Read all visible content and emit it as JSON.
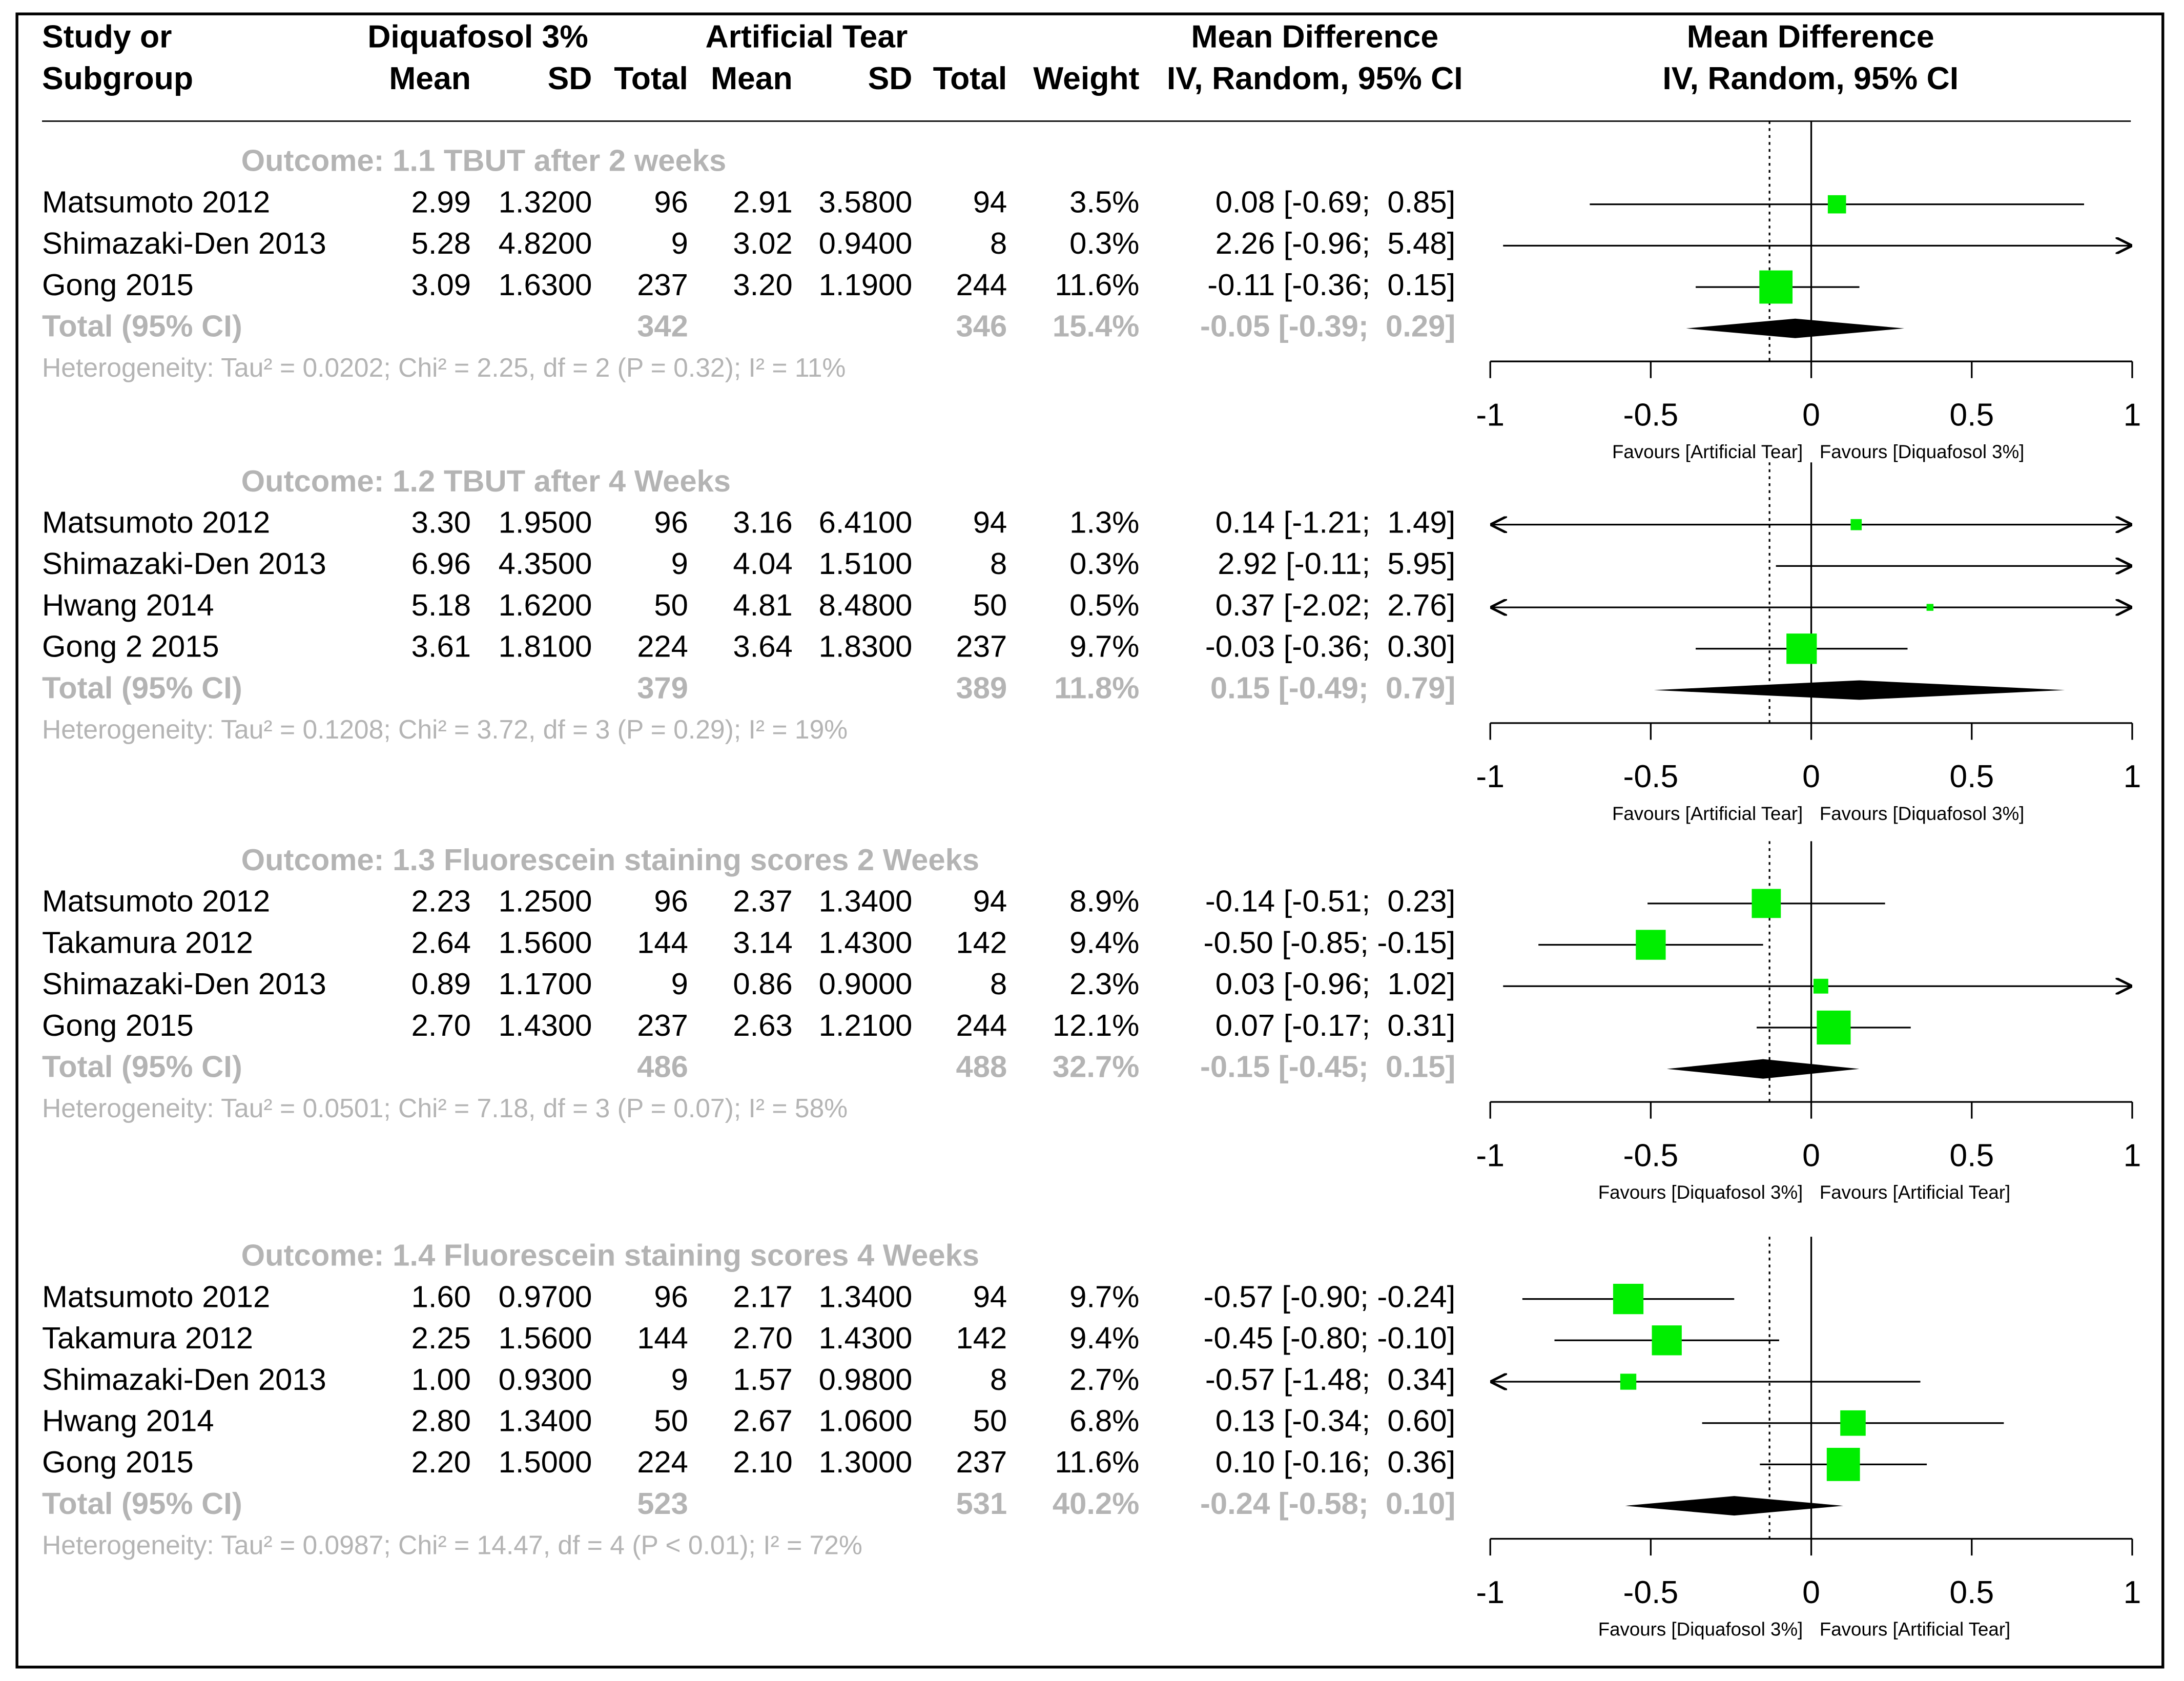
{
  "chart_data": {
    "type": "forest",
    "header": {
      "study": [
        "Study or",
        "Subgroup"
      ],
      "group1": "Diquafosol 3%",
      "group2": "Artificial Tear",
      "md": "Mean Difference",
      "plot": "Mean Difference",
      "cols": [
        "Mean",
        "SD",
        "Total",
        "Mean",
        "SD",
        "Total",
        "Weight",
        "IV, Random, 95% CI"
      ],
      "plot_sub": "IV, Random, 95% CI"
    },
    "xlim": [
      -1,
      1
    ],
    "xticks": [
      -1,
      -0.5,
      0,
      0.5,
      1
    ],
    "dotted_line": -0.13,
    "box_color": "#00ee00",
    "subgroups": [
      {
        "title": "Outcome: 1.1 TBUT after 2 weeks",
        "studies": [
          {
            "name": "Matsumoto 2012",
            "cells": [
              "2.99",
              "1.3200",
              "96",
              "2.91",
              "3.5800",
              "94"
            ],
            "weight": 3.5,
            "weight_label": "3.5%",
            "md": 0.08,
            "lo": -0.69,
            "hi": 0.85,
            "ci_label": "0.08 [-0.69;  0.85]"
          },
          {
            "name": "Shimazaki-Den 2013",
            "cells": [
              "5.28",
              "4.8200",
              "9",
              "3.02",
              "0.9400",
              "8"
            ],
            "weight": 0.3,
            "weight_label": "0.3%",
            "md": 2.26,
            "lo": -0.96,
            "hi": 5.48,
            "ci_label": "2.26 [-0.96;  5.48]"
          },
          {
            "name": "Gong 2015",
            "cells": [
              "3.09",
              "1.6300",
              "237",
              "3.20",
              "1.1900",
              "244"
            ],
            "weight": 11.6,
            "weight_label": "11.6%",
            "md": -0.11,
            "lo": -0.36,
            "hi": 0.15,
            "ci_label": "-0.11 [-0.36;  0.15]"
          }
        ],
        "total": {
          "label": "Total (95% CI)",
          "n1": "342",
          "n2": "346",
          "weight_label": "15.4%",
          "md": -0.05,
          "lo": -0.39,
          "hi": 0.29,
          "ci_label": "-0.05 [-0.39;  0.29]"
        },
        "heterogeneity": "Heterogeneity: Tau² = 0.0202; Chi² = 2.25, df = 2 (P = 0.32); I² = 11%",
        "favours": [
          "Favours [Artificial Tear]",
          "Favours [Diquafosol 3%]"
        ]
      },
      {
        "title": "Outcome: 1.2 TBUT after 4 Weeks",
        "studies": [
          {
            "name": "Matsumoto 2012",
            "cells": [
              "3.30",
              "1.9500",
              "96",
              "3.16",
              "6.4100",
              "94"
            ],
            "weight": 1.3,
            "weight_label": "1.3%",
            "md": 0.14,
            "lo": -1.21,
            "hi": 1.49,
            "ci_label": "0.14 [-1.21;  1.49]"
          },
          {
            "name": "Shimazaki-Den 2013",
            "cells": [
              "6.96",
              "4.3500",
              "9",
              "4.04",
              "1.5100",
              "8"
            ],
            "weight": 0.3,
            "weight_label": "0.3%",
            "md": 2.92,
            "lo": -0.11,
            "hi": 5.95,
            "ci_label": "2.92 [-0.11;  5.95]"
          },
          {
            "name": "Hwang 2014",
            "cells": [
              "5.18",
              "1.6200",
              "50",
              "4.81",
              "8.4800",
              "50"
            ],
            "weight": 0.5,
            "weight_label": "0.5%",
            "md": 0.37,
            "lo": -2.02,
            "hi": 2.76,
            "ci_label": "0.37 [-2.02;  2.76]"
          },
          {
            "name": "Gong 2 2015",
            "cells": [
              "3.61",
              "1.8100",
              "224",
              "3.64",
              "1.8300",
              "237"
            ],
            "weight": 9.7,
            "weight_label": "9.7%",
            "md": -0.03,
            "lo": -0.36,
            "hi": 0.3,
            "ci_label": "-0.03 [-0.36;  0.30]"
          }
        ],
        "total": {
          "label": "Total (95% CI)",
          "n1": "379",
          "n2": "389",
          "weight_label": "11.8%",
          "md": 0.15,
          "lo": -0.49,
          "hi": 0.79,
          "ci_label": "0.15 [-0.49;  0.79]"
        },
        "heterogeneity": "Heterogeneity: Tau² = 0.1208; Chi² = 3.72, df = 3 (P = 0.29); I² = 19%",
        "favours": [
          "Favours [Artificial Tear]",
          "Favours [Diquafosol 3%]"
        ]
      },
      {
        "title": "Outcome: 1.3 Fluorescein staining scores 2 Weeks",
        "studies": [
          {
            "name": "Matsumoto 2012",
            "cells": [
              "2.23",
              "1.2500",
              "96",
              "2.37",
              "1.3400",
              "94"
            ],
            "weight": 8.9,
            "weight_label": "8.9%",
            "md": -0.14,
            "lo": -0.51,
            "hi": 0.23,
            "ci_label": "-0.14 [-0.51;  0.23]"
          },
          {
            "name": "Takamura 2012",
            "cells": [
              "2.64",
              "1.5600",
              "144",
              "3.14",
              "1.4300",
              "142"
            ],
            "weight": 9.4,
            "weight_label": "9.4%",
            "md": -0.5,
            "lo": -0.85,
            "hi": -0.15,
            "ci_label": "-0.50 [-0.85; -0.15]"
          },
          {
            "name": "Shimazaki-Den 2013",
            "cells": [
              "0.89",
              "1.1700",
              "9",
              "0.86",
              "0.9000",
              "8"
            ],
            "weight": 2.3,
            "weight_label": "2.3%",
            "md": 0.03,
            "lo": -0.96,
            "hi": 1.02,
            "ci_label": "0.03 [-0.96;  1.02]"
          },
          {
            "name": "Gong 2015",
            "cells": [
              "2.70",
              "1.4300",
              "237",
              "2.63",
              "1.2100",
              "244"
            ],
            "weight": 12.1,
            "weight_label": "12.1%",
            "md": 0.07,
            "lo": -0.17,
            "hi": 0.31,
            "ci_label": "0.07 [-0.17;  0.31]"
          }
        ],
        "total": {
          "label": "Total (95% CI)",
          "n1": "486",
          "n2": "488",
          "weight_label": "32.7%",
          "md": -0.15,
          "lo": -0.45,
          "hi": 0.15,
          "ci_label": "-0.15 [-0.45;  0.15]"
        },
        "heterogeneity": "Heterogeneity: Tau² = 0.0501; Chi² = 7.18, df = 3 (P = 0.07); I² = 58%",
        "favours": [
          "Favours [Diquafosol 3%]",
          "Favours [Artificial Tear]"
        ]
      },
      {
        "title": "Outcome: 1.4 Fluorescein staining scores 4 Weeks",
        "studies": [
          {
            "name": "Matsumoto 2012",
            "cells": [
              "1.60",
              "0.9700",
              "96",
              "2.17",
              "1.3400",
              "94"
            ],
            "weight": 9.7,
            "weight_label": "9.7%",
            "md": -0.57,
            "lo": -0.9,
            "hi": -0.24,
            "ci_label": "-0.57 [-0.90; -0.24]"
          },
          {
            "name": "Takamura 2012",
            "cells": [
              "2.25",
              "1.5600",
              "144",
              "2.70",
              "1.4300",
              "142"
            ],
            "weight": 9.4,
            "weight_label": "9.4%",
            "md": -0.45,
            "lo": -0.8,
            "hi": -0.1,
            "ci_label": "-0.45 [-0.80; -0.10]"
          },
          {
            "name": "Shimazaki-Den 2013",
            "cells": [
              "1.00",
              "0.9300",
              "9",
              "1.57",
              "0.9800",
              "8"
            ],
            "weight": 2.7,
            "weight_label": "2.7%",
            "md": -0.57,
            "lo": -1.48,
            "hi": 0.34,
            "ci_label": "-0.57 [-1.48;  0.34]"
          },
          {
            "name": "Hwang 2014",
            "cells": [
              "2.80",
              "1.3400",
              "50",
              "2.67",
              "1.0600",
              "50"
            ],
            "weight": 6.8,
            "weight_label": "6.8%",
            "md": 0.13,
            "lo": -0.34,
            "hi": 0.6,
            "ci_label": "0.13 [-0.34;  0.60]"
          },
          {
            "name": "Gong 2015",
            "cells": [
              "2.20",
              "1.5000",
              "224",
              "2.10",
              "1.3000",
              "237"
            ],
            "weight": 11.6,
            "weight_label": "11.6%",
            "md": 0.1,
            "lo": -0.16,
            "hi": 0.36,
            "ci_label": "0.10 [-0.16;  0.36]"
          }
        ],
        "total": {
          "label": "Total (95% CI)",
          "n1": "523",
          "n2": "531",
          "weight_label": "40.2%",
          "md": -0.24,
          "lo": -0.58,
          "hi": 0.1,
          "ci_label": "-0.24 [-0.58;  0.10]"
        },
        "heterogeneity": "Heterogeneity: Tau² = 0.0987; Chi² = 14.47, df = 4 (P < 0.01); I² = 72%",
        "favours": [
          "Favours [Diquafosol 3%]",
          "Favours [Artificial Tear]"
        ]
      }
    ]
  }
}
